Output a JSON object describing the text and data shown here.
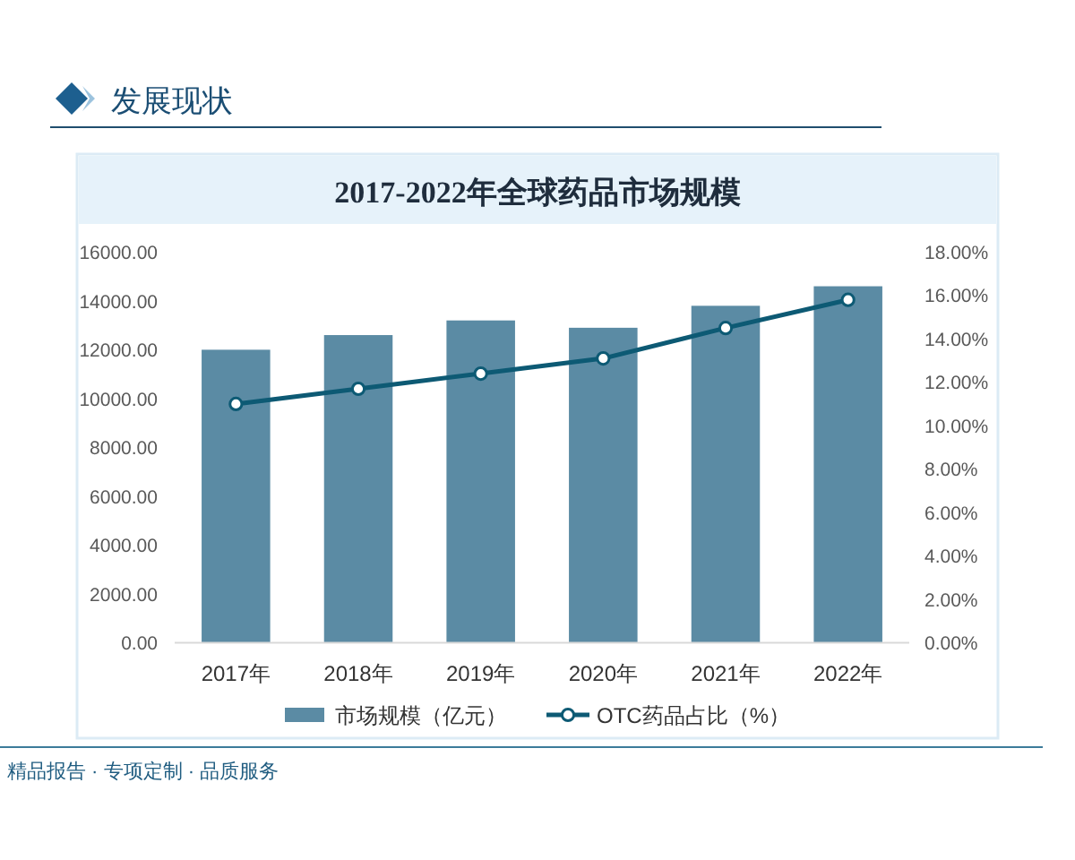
{
  "chart_data": {
    "type": "bar",
    "title": "2017-2022年全球药品市场规模",
    "categories": [
      "2017年",
      "2018年",
      "2019年",
      "2020年",
      "2021年",
      "2022年"
    ],
    "series": [
      {
        "name": "市场规模（亿元）",
        "color": "#5b8ba4",
        "values": [
          12000,
          12600,
          13200,
          12900,
          13800,
          14600
        ]
      },
      {
        "name": "OTC药品占比（%）",
        "type": "line",
        "axis": "y2",
        "color": "#0d5a74",
        "marker": "circle",
        "values": [
          11.0,
          11.7,
          12.4,
          13.1,
          14.5,
          15.8
        ]
      }
    ],
    "ylim": [
      0,
      16000
    ],
    "yticks": [
      {
        "value": 0,
        "label": "0.00"
      },
      {
        "value": 2000,
        "label": "2000.00"
      },
      {
        "value": 4000,
        "label": "4000.00"
      },
      {
        "value": 6000,
        "label": "6000.00"
      },
      {
        "value": 8000,
        "label": "8000.00"
      },
      {
        "value": 10000,
        "label": "10000.00"
      },
      {
        "value": 12000,
        "label": "12000.00"
      },
      {
        "value": 14000,
        "label": "14000.00"
      },
      {
        "value": 16000,
        "label": "16000.00"
      }
    ],
    "y2lim": [
      0,
      18
    ],
    "y2ticks": [
      {
        "value": 0,
        "label": "0.00%"
      },
      {
        "value": 2,
        "label": "2.00%"
      },
      {
        "value": 4,
        "label": "4.00%"
      },
      {
        "value": 6,
        "label": "6.00%"
      },
      {
        "value": 8,
        "label": "8.00%"
      },
      {
        "value": 10,
        "label": "10.00%"
      },
      {
        "value": 12,
        "label": "12.00%"
      },
      {
        "value": 14,
        "label": "14.00%"
      },
      {
        "value": 16,
        "label": "16.00%"
      },
      {
        "value": 18,
        "label": "18.00%"
      }
    ],
    "legend": "bottom",
    "annotations": [
      "发展现状",
      "精品报告 · 专项定制 · 品质服务"
    ]
  }
}
